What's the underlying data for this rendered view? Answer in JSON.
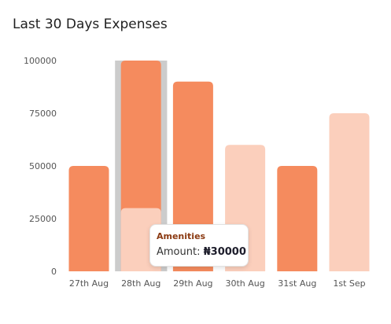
{
  "page": {
    "title": "Last 30 Days Expenses"
  },
  "chart_data": {
    "type": "bar",
    "categories": [
      "27th Aug",
      "28th Aug",
      "29th Aug",
      "30th Aug",
      "31st Aug",
      "1st Sep"
    ],
    "series": [
      {
        "values": [
          50000,
          100000,
          90000,
          0,
          50000,
          0
        ],
        "color": "#f58b5e"
      },
      {
        "values": [
          0,
          30000,
          0,
          60000,
          0,
          75000
        ],
        "color": "#fbcfbc"
      }
    ],
    "highlight": {
      "category": "28th Aug",
      "color": "#cccccc"
    },
    "yticks": [
      0,
      25000,
      50000,
      75000,
      100000
    ],
    "ylim": [
      0,
      100000
    ],
    "title": "Last 30 Days Expenses",
    "xlabel": "",
    "ylabel": "",
    "grid": false
  },
  "tooltip": {
    "title": "Amenities",
    "label": "Amount: ",
    "value": "₦30000"
  }
}
